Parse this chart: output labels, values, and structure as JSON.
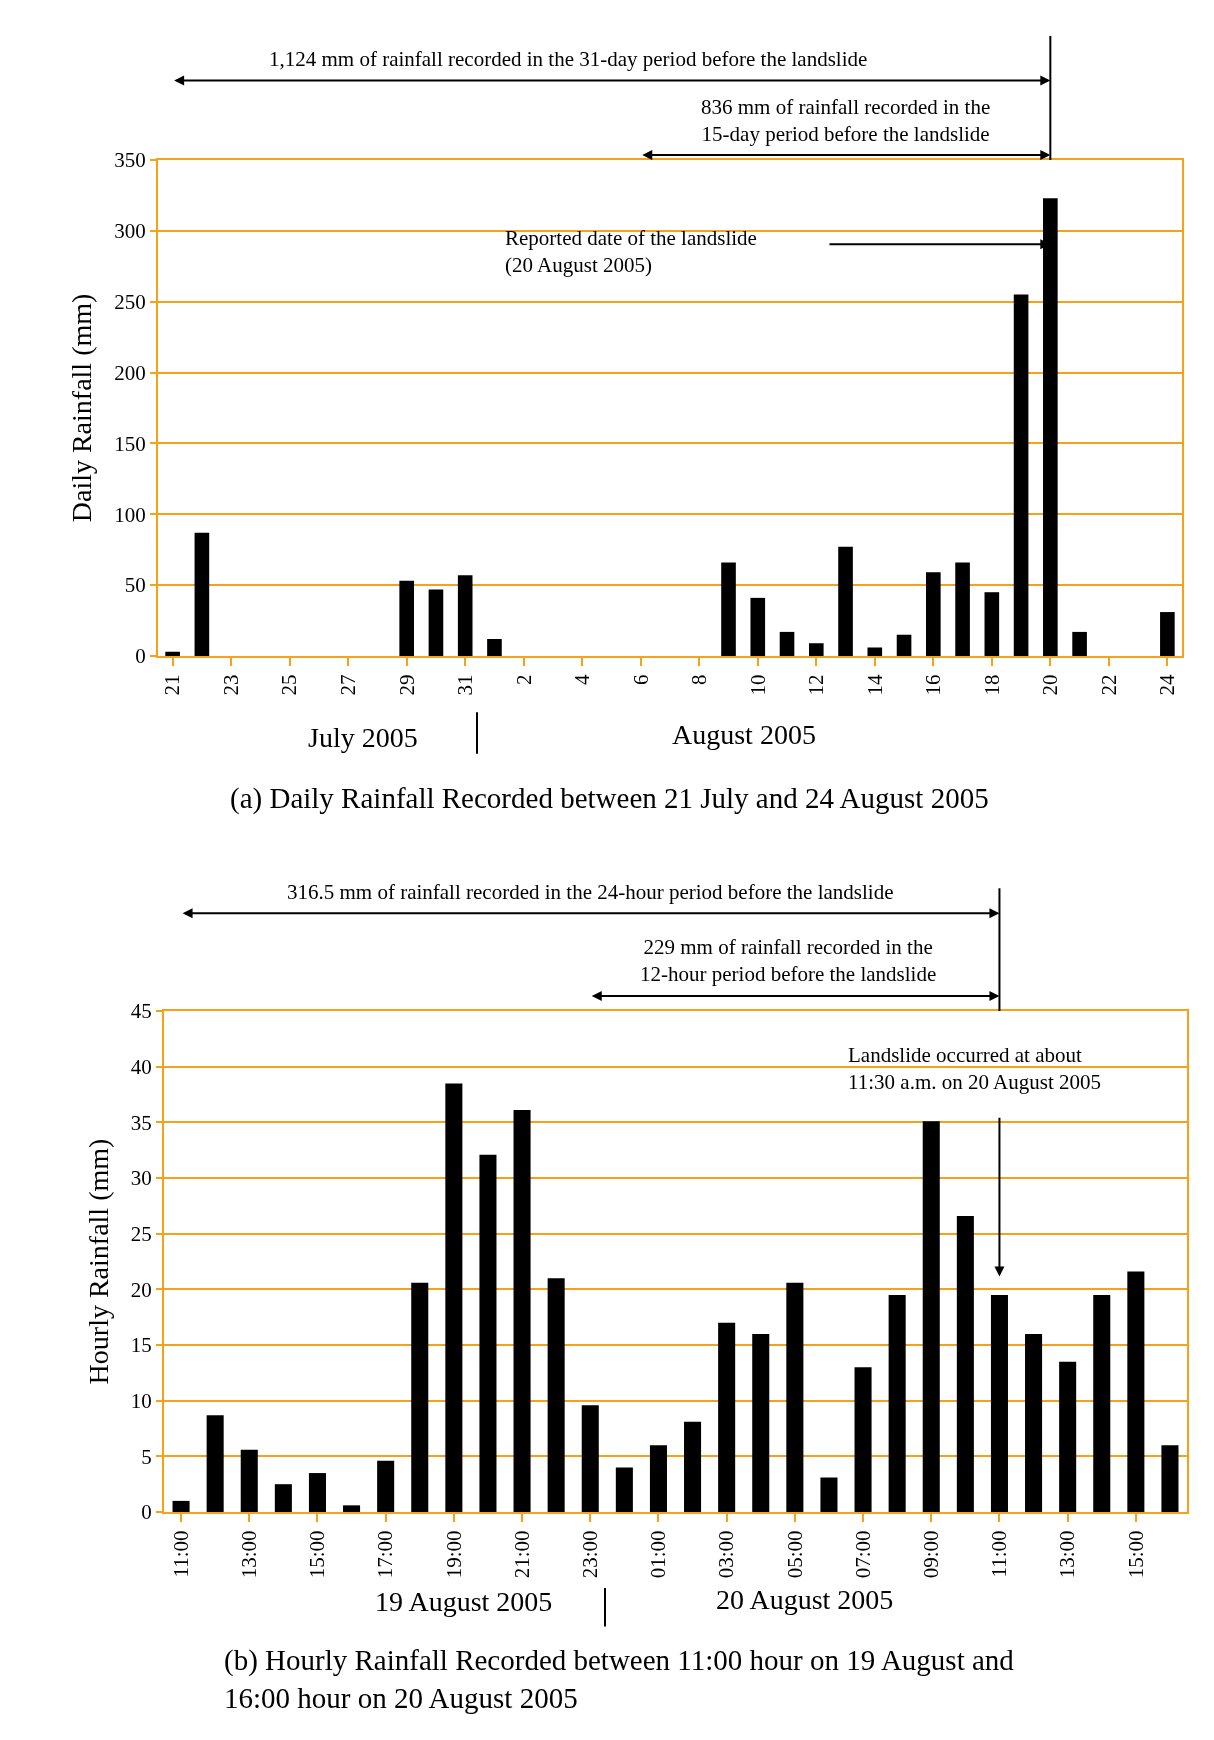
{
  "chart_data": [
    {
      "type": "bar",
      "title": "(a) Daily Rainfall Recorded between 21 July and 24 August 2005",
      "ylabel": "Daily Rainfall (mm)",
      "categories": [
        "21",
        null,
        "23",
        null,
        "25",
        null,
        "27",
        null,
        "29",
        null,
        "31",
        null,
        "2",
        null,
        "4",
        null,
        "6",
        null,
        "8",
        null,
        "10",
        null,
        "12",
        null,
        "14",
        null,
        "16",
        null,
        "18",
        null,
        "20",
        null,
        "22",
        null,
        "24"
      ],
      "values": [
        3,
        87,
        0,
        0,
        0,
        0,
        0,
        0,
        53,
        47,
        57,
        12,
        0,
        0,
        0,
        0,
        0,
        0,
        0,
        66,
        41,
        17,
        9,
        77,
        6,
        15,
        59,
        66,
        45,
        255,
        323,
        17,
        0,
        0,
        31
      ],
      "color": "#000000",
      "ylim": [
        0,
        350
      ],
      "yticks": [
        0,
        50,
        100,
        150,
        200,
        250,
        300,
        350
      ],
      "grid": "y",
      "annotations": [
        "1,124 mm of rainfall recorded in the 31-day period before the landslide",
        "836 mm of rainfall recorded in the\n15-day period before the landslide",
        "Reported date of the landslide\n(20 August 2005)",
        "July 2005",
        "August 2005"
      ]
    },
    {
      "type": "bar",
      "title": "(b) Hourly Rainfall Recorded between 11:00 hour on 19 August and\n16:00 hour on 20 August 2005",
      "ylabel": "Hourly Rainfall (mm)",
      "categories": [
        "11:00",
        null,
        "13:00",
        null,
        "15:00",
        null,
        "17:00",
        null,
        "19:00",
        null,
        "21:00",
        null,
        "23:00",
        null,
        "01:00",
        null,
        "03:00",
        null,
        "05:00",
        null,
        "07:00",
        null,
        "09:00",
        null,
        "11:00",
        null,
        "13:00",
        null,
        "15:00",
        null
      ],
      "values": [
        1.0,
        8.7,
        5.6,
        2.5,
        3.5,
        0.6,
        4.6,
        20.6,
        38.5,
        32.1,
        36.1,
        21.0,
        9.6,
        4.0,
        6.0,
        8.1,
        17.0,
        16.0,
        20.6,
        3.1,
        13.0,
        19.5,
        35.1,
        26.6,
        19.5,
        16.0,
        13.5,
        19.5,
        21.6,
        6.0
      ],
      "color": "#000000",
      "ylim": [
        0,
        45
      ],
      "yticks": [
        0,
        5,
        10,
        15,
        20,
        25,
        30,
        35,
        40,
        45
      ],
      "grid": "y",
      "annotations": [
        "316.5 mm of rainfall recorded in the 24-hour period before the landslide",
        "229 mm of rainfall recorded in the\n12-hour period before the landslide",
        "Landslide occurred at about\n11:30 a.m. on 20 August 2005",
        "19 August 2005",
        "20 August 2005"
      ]
    }
  ]
}
